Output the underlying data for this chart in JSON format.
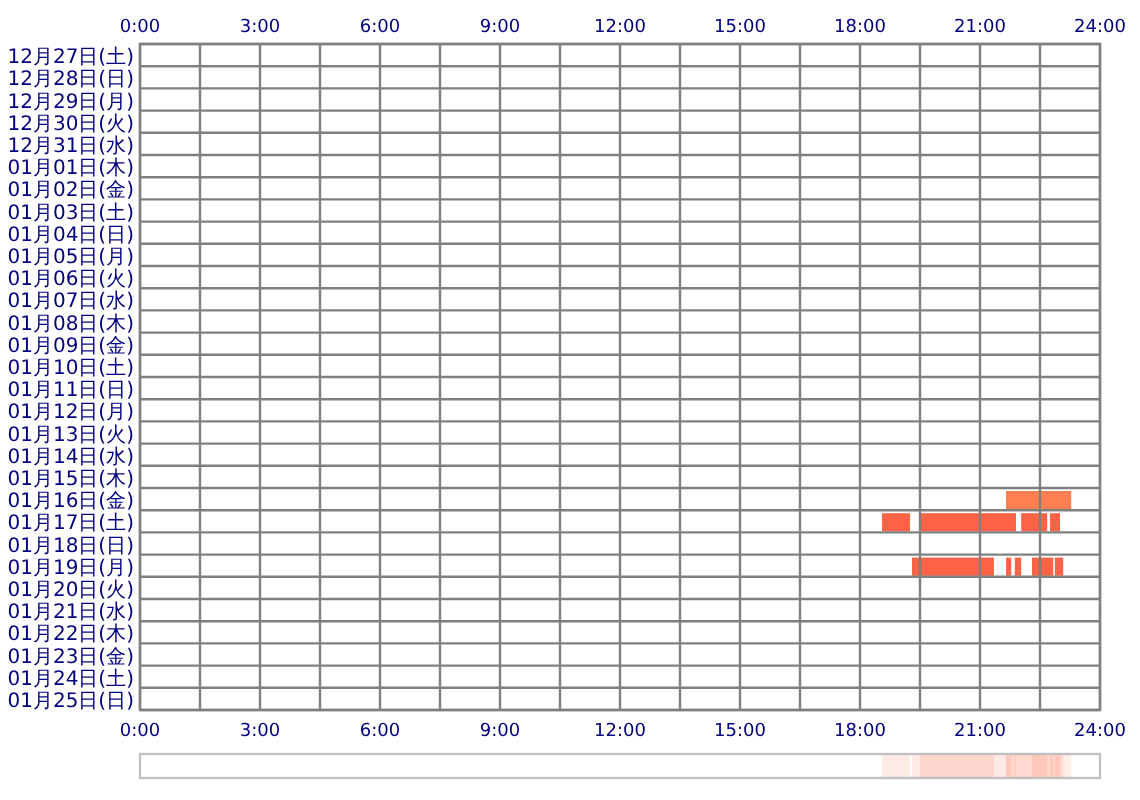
{
  "chart_data": {
    "type": "bar",
    "orientation": "horizontal",
    "grid": true,
    "categories": [
      "12月27日(土)",
      "12月28日(日)",
      "12月29日(月)",
      "12月30日(火)",
      "12月31日(水)",
      "01月01日(木)",
      "01月02日(金)",
      "01月03日(土)",
      "01月04日(日)",
      "01月05日(月)",
      "01月06日(火)",
      "01月07日(水)",
      "01月08日(木)",
      "01月09日(金)",
      "01月10日(土)",
      "01月11日(日)",
      "01月12日(月)",
      "01月13日(火)",
      "01月14日(水)",
      "01月15日(木)",
      "01月16日(金)",
      "01月17日(土)",
      "01月18日(日)",
      "01月19日(月)",
      "01月20日(火)",
      "01月21日(水)",
      "01月22日(木)",
      "01月23日(金)",
      "01月24日(土)",
      "01月25日(日)"
    ],
    "xlim": [
      0,
      24
    ],
    "xticks": [
      {
        "value": 0,
        "label": "0:00"
      },
      {
        "value": 1.5,
        "label": null
      },
      {
        "value": 3,
        "label": "3:00"
      },
      {
        "value": 4.5,
        "label": null
      },
      {
        "value": 6,
        "label": "6:00"
      },
      {
        "value": 7.5,
        "label": null
      },
      {
        "value": 9,
        "label": "9:00"
      },
      {
        "value": 10.5,
        "label": null
      },
      {
        "value": 12,
        "label": "12:00"
      },
      {
        "value": 13.5,
        "label": null
      },
      {
        "value": 15,
        "label": "15:00"
      },
      {
        "value": 16.5,
        "label": null
      },
      {
        "value": 18,
        "label": "18:00"
      },
      {
        "value": 19.5,
        "label": null
      },
      {
        "value": 21,
        "label": "21:00"
      },
      {
        "value": 22.5,
        "label": null
      },
      {
        "value": 24,
        "label": "24:00"
      }
    ],
    "x2lim": [
      0,
      24
    ],
    "x2ticks": [
      {
        "value": 0,
        "label": "0:00"
      },
      {
        "value": 3,
        "label": "3:00"
      },
      {
        "value": 6,
        "label": "6:00"
      },
      {
        "value": 9,
        "label": "9:00"
      },
      {
        "value": 12,
        "label": "12:00"
      },
      {
        "value": 15,
        "label": "15:00"
      },
      {
        "value": 18,
        "label": "18:00"
      },
      {
        "value": 21,
        "label": "21:00"
      },
      {
        "value": 24,
        "label": "24:00"
      }
    ],
    "series": [
      {
        "color": "#ff7f50",
        "values": [
          null,
          null,
          null,
          null,
          null,
          null,
          null,
          null,
          null,
          null,
          null,
          null,
          null,
          null,
          null,
          null,
          null,
          null,
          null,
          null,
          1.63,
          null,
          null,
          null,
          null,
          null,
          null,
          null,
          null,
          null
        ],
        "base": [
          null,
          null,
          null,
          null,
          null,
          null,
          null,
          null,
          null,
          null,
          null,
          null,
          null,
          null,
          null,
          null,
          null,
          null,
          null,
          null,
          21.65,
          null,
          null,
          null,
          null,
          null,
          null,
          null,
          null,
          null
        ]
      },
      {
        "color": "#ff6347",
        "values": [
          null,
          null,
          null,
          null,
          null,
          null,
          null,
          null,
          null,
          null,
          null,
          null,
          null,
          null,
          null,
          null,
          null,
          null,
          null,
          null,
          null,
          0.7,
          null,
          2.05,
          null,
          null,
          null,
          null,
          null,
          null
        ],
        "base": [
          null,
          null,
          null,
          null,
          null,
          null,
          null,
          null,
          null,
          null,
          null,
          null,
          null,
          null,
          null,
          null,
          null,
          null,
          null,
          null,
          null,
          18.55,
          null,
          19.3,
          null,
          null,
          null,
          null,
          null,
          null
        ]
      },
      {
        "color": "#ff6347",
        "values": [
          null,
          null,
          null,
          null,
          null,
          null,
          null,
          null,
          null,
          null,
          null,
          null,
          null,
          null,
          null,
          null,
          null,
          null,
          null,
          null,
          null,
          2.4,
          null,
          0.13,
          null,
          null,
          null,
          null,
          null,
          null
        ],
        "base": [
          null,
          null,
          null,
          null,
          null,
          null,
          null,
          null,
          null,
          null,
          null,
          null,
          null,
          null,
          null,
          null,
          null,
          null,
          null,
          null,
          null,
          19.5,
          null,
          21.65,
          null,
          null,
          null,
          null,
          null,
          null
        ]
      },
      {
        "color": "#ff6347",
        "values": [
          null,
          null,
          null,
          null,
          null,
          null,
          null,
          null,
          null,
          null,
          null,
          null,
          null,
          null,
          null,
          null,
          null,
          null,
          null,
          null,
          null,
          0.65,
          null,
          0.16,
          null,
          null,
          null,
          null,
          null,
          null
        ],
        "base": [
          null,
          null,
          null,
          null,
          null,
          null,
          null,
          null,
          null,
          null,
          null,
          null,
          null,
          null,
          null,
          null,
          null,
          null,
          null,
          null,
          null,
          22.03,
          null,
          21.87,
          null,
          null,
          null,
          null,
          null,
          null
        ]
      },
      {
        "color": "#ff6347",
        "values": [
          null,
          null,
          null,
          null,
          null,
          null,
          null,
          null,
          null,
          null,
          null,
          null,
          null,
          null,
          null,
          null,
          null,
          null,
          null,
          null,
          null,
          0.25,
          null,
          0.53,
          null,
          null,
          null,
          null,
          null,
          null
        ],
        "base": [
          null,
          null,
          null,
          null,
          null,
          null,
          null,
          null,
          null,
          null,
          null,
          null,
          null,
          null,
          null,
          null,
          null,
          null,
          null,
          null,
          null,
          22.75,
          null,
          22.3,
          null,
          null,
          null,
          null,
          null,
          null
        ]
      },
      {
        "color": "#ff6347",
        "values": [
          null,
          null,
          null,
          null,
          null,
          null,
          null,
          null,
          null,
          null,
          null,
          null,
          null,
          null,
          null,
          null,
          null,
          null,
          null,
          null,
          null,
          null,
          null,
          0.21,
          null,
          null,
          null,
          null,
          null,
          null
        ],
        "base": [
          null,
          null,
          null,
          null,
          null,
          null,
          null,
          null,
          null,
          null,
          null,
          null,
          null,
          null,
          null,
          null,
          null,
          null,
          null,
          null,
          null,
          null,
          null,
          22.87,
          null,
          null,
          null,
          null,
          null,
          null
        ]
      }
    ]
  }
}
